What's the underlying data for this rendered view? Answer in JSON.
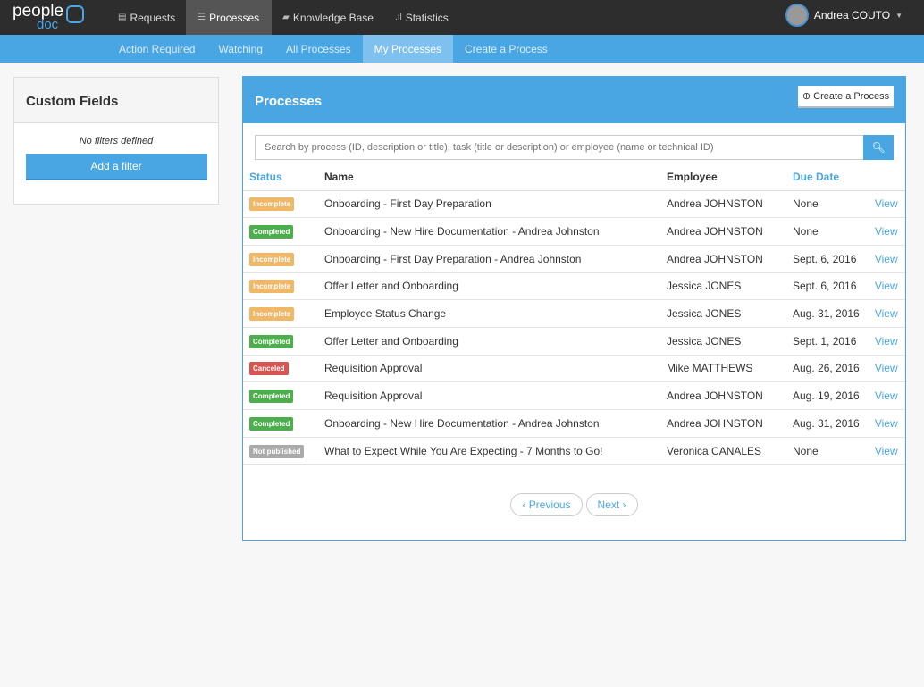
{
  "app": {
    "logo_text": "people",
    "logo_sub": "doc"
  },
  "nav": [
    {
      "label": "Requests",
      "icon": "inbox-icon",
      "glyph": "▤",
      "active": false
    },
    {
      "label": "Processes",
      "icon": "list-icon",
      "glyph": "☰",
      "active": true
    },
    {
      "label": "Knowledge Base",
      "icon": "book-icon",
      "glyph": "▰",
      "active": false
    },
    {
      "label": "Statistics",
      "icon": "bar-chart-icon",
      "glyph": ".ıl",
      "active": false
    }
  ],
  "user": {
    "name": "Andrea COUTO"
  },
  "subnav": [
    {
      "label": "Action Required",
      "active": false
    },
    {
      "label": "Watching",
      "active": false
    },
    {
      "label": "All Processes",
      "active": false
    },
    {
      "label": "My Processes",
      "active": true
    },
    {
      "label": "Create a Process",
      "active": false
    }
  ],
  "sidebar": {
    "title": "Custom Fields",
    "no_filters": "No filters defined",
    "add_filter": "Add a filter"
  },
  "main": {
    "title": "Processes",
    "create_button": "Create a Process",
    "search_placeholder": "Search by process (ID, description or title), task (title or description) or employee (name or technical ID)",
    "columns": {
      "status": "Status",
      "name": "Name",
      "employee": "Employee",
      "due": "Due Date"
    },
    "rows": [
      {
        "status": "Incomplete",
        "name": "Onboarding - First Day Preparation",
        "employee": "Andrea JOHNSTON",
        "due": "None",
        "action": "View"
      },
      {
        "status": "Completed",
        "name": "Onboarding - New Hire Documentation - Andrea Johnston",
        "employee": "Andrea JOHNSTON",
        "due": "None",
        "action": "View"
      },
      {
        "status": "Incomplete",
        "name": "Onboarding - First Day Preparation - Andrea Johnston",
        "employee": "Andrea JOHNSTON",
        "due": "Sept. 6, 2016",
        "action": "View"
      },
      {
        "status": "Incomplete",
        "name": "Offer Letter and Onboarding",
        "employee": "Jessica JONES",
        "due": "Sept. 6, 2016",
        "action": "View"
      },
      {
        "status": "Incomplete",
        "name": "Employee Status Change",
        "employee": "Jessica JONES",
        "due": "Aug. 31, 2016",
        "action": "View"
      },
      {
        "status": "Completed",
        "name": "Offer Letter and Onboarding",
        "employee": "Jessica JONES",
        "due": "Sept. 1, 2016",
        "action": "View"
      },
      {
        "status": "Canceled",
        "name": "Requisition Approval",
        "employee": "Mike MATTHEWS",
        "due": "Aug. 26, 2016",
        "action": "View"
      },
      {
        "status": "Completed",
        "name": "Requisition Approval",
        "employee": "Andrea JOHNSTON",
        "due": "Aug. 19, 2016",
        "action": "View"
      },
      {
        "status": "Completed",
        "name": "Onboarding - New Hire Documentation - Andrea Johnston",
        "employee": "Andrea JOHNSTON",
        "due": "Aug. 31, 2016",
        "action": "View"
      },
      {
        "status": "Not published",
        "name": "What to Expect While You Are Expecting - 7 Months to Go!",
        "employee": "Veronica CANALES",
        "due": "None",
        "action": "View"
      }
    ],
    "pagination": {
      "previous": "‹ Previous",
      "next": "Next ›"
    }
  },
  "status_colors": {
    "Incomplete": "#f0b766",
    "Completed": "#4cae4c",
    "Canceled": "#d9534f",
    "Not published": "#aaaaaa"
  }
}
